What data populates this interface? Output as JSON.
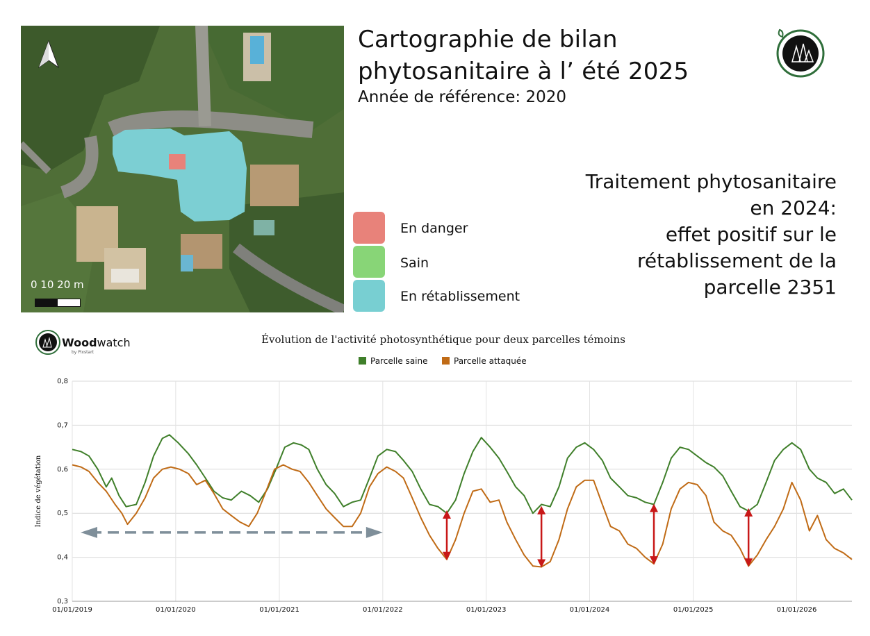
{
  "title_line1": "Cartographie de bilan",
  "title_line2": "phytosanitaire à l’ été 2025",
  "subtitle": "Année de référence: 2020",
  "map": {
    "scale_label": "0   10  20 m"
  },
  "legend": [
    {
      "label": "En danger",
      "color": "#e8827a"
    },
    {
      "label": "Sain",
      "color": "#88d577"
    },
    {
      "label": "En rétablissement",
      "color": "#78cfd2"
    }
  ],
  "note_lines": [
    "Traitement phytosanitaire",
    "en 2024:",
    "effet positif sur le",
    "rétablissement de la",
    "parcelle 2351"
  ],
  "brand": {
    "name_bold": "Wood",
    "name_rest": "watch",
    "tagline": "by Pixstart"
  },
  "colors": {
    "healthy": "#3f7f2a",
    "attacked": "#c06b16",
    "arrow_red": "#c81818",
    "arrow_grey": "#7f8f9a"
  },
  "chart_data": {
    "type": "line",
    "title": "Évolution de l'activité photosynthétique pour deux parcelles témoins",
    "ylabel": "Indice de végétation",
    "xlabel": "",
    "ylim": [
      0.3,
      0.8
    ],
    "xlim": [
      "2019-01-01",
      "2026-07-15"
    ],
    "y_ticks": [
      "0,3",
      "0,4",
      "0,5",
      "0,6",
      "0,7",
      "0,8"
    ],
    "x_ticks": [
      "01/01/2019",
      "01/01/2020",
      "01/01/2021",
      "01/01/2022",
      "01/01/2023",
      "01/01/2024",
      "01/01/2025",
      "01/01/2026"
    ],
    "grid": true,
    "legend_position": "top",
    "series": [
      {
        "name": "Parcelle saine",
        "points": [
          [
            "2019-01-01",
            0.645
          ],
          [
            "2019-02-01",
            0.64
          ],
          [
            "2019-03-01",
            0.63
          ],
          [
            "2019-04-01",
            0.6
          ],
          [
            "2019-05-01",
            0.56
          ],
          [
            "2019-05-20",
            0.58
          ],
          [
            "2019-06-15",
            0.54
          ],
          [
            "2019-07-10",
            0.515
          ],
          [
            "2019-08-15",
            0.52
          ],
          [
            "2019-09-15",
            0.57
          ],
          [
            "2019-10-15",
            0.63
          ],
          [
            "2019-11-15",
            0.67
          ],
          [
            "2019-12-10",
            0.678
          ],
          [
            "2020-01-10",
            0.66
          ],
          [
            "2020-02-15",
            0.635
          ],
          [
            "2020-03-15",
            0.61
          ],
          [
            "2020-04-15",
            0.58
          ],
          [
            "2020-05-15",
            0.55
          ],
          [
            "2020-06-15",
            0.535
          ],
          [
            "2020-07-15",
            0.53
          ],
          [
            "2020-08-20",
            0.55
          ],
          [
            "2020-09-20",
            0.54
          ],
          [
            "2020-10-20",
            0.525
          ],
          [
            "2020-11-20",
            0.555
          ],
          [
            "2020-12-20",
            0.6
          ],
          [
            "2021-01-20",
            0.65
          ],
          [
            "2021-02-20",
            0.66
          ],
          [
            "2021-03-20",
            0.655
          ],
          [
            "2021-04-15",
            0.645
          ],
          [
            "2021-05-15",
            0.6
          ],
          [
            "2021-06-15",
            0.565
          ],
          [
            "2021-07-15",
            0.545
          ],
          [
            "2021-08-15",
            0.515
          ],
          [
            "2021-09-15",
            0.525
          ],
          [
            "2021-10-15",
            0.53
          ],
          [
            "2021-11-15",
            0.58
          ],
          [
            "2021-12-15",
            0.63
          ],
          [
            "2022-01-15",
            0.645
          ],
          [
            "2022-02-15",
            0.64
          ],
          [
            "2022-03-15",
            0.62
          ],
          [
            "2022-04-15",
            0.595
          ],
          [
            "2022-05-15",
            0.555
          ],
          [
            "2022-06-15",
            0.52
          ],
          [
            "2022-07-15",
            0.515
          ],
          [
            "2022-08-15",
            0.5
          ],
          [
            "2022-09-15",
            0.53
          ],
          [
            "2022-10-15",
            0.59
          ],
          [
            "2022-11-15",
            0.64
          ],
          [
            "2022-12-15",
            0.672
          ],
          [
            "2023-01-15",
            0.65
          ],
          [
            "2023-02-15",
            0.625
          ],
          [
            "2023-03-15",
            0.595
          ],
          [
            "2023-04-15",
            0.56
          ],
          [
            "2023-05-15",
            0.54
          ],
          [
            "2023-06-15",
            0.5
          ],
          [
            "2023-07-15",
            0.52
          ],
          [
            "2023-08-15",
            0.515
          ],
          [
            "2023-09-15",
            0.56
          ],
          [
            "2023-10-15",
            0.625
          ],
          [
            "2023-11-15",
            0.65
          ],
          [
            "2023-12-15",
            0.66
          ],
          [
            "2024-01-15",
            0.645
          ],
          [
            "2024-02-15",
            0.62
          ],
          [
            "2024-03-15",
            0.58
          ],
          [
            "2024-04-15",
            0.56
          ],
          [
            "2024-05-15",
            0.54
          ],
          [
            "2024-06-15",
            0.535
          ],
          [
            "2024-07-15",
            0.525
          ],
          [
            "2024-08-15",
            0.52
          ],
          [
            "2024-09-15",
            0.57
          ],
          [
            "2024-10-15",
            0.625
          ],
          [
            "2024-11-15",
            0.65
          ],
          [
            "2024-12-15",
            0.645
          ],
          [
            "2025-01-15",
            0.63
          ],
          [
            "2025-02-15",
            0.615
          ],
          [
            "2025-03-15",
            0.605
          ],
          [
            "2025-04-15",
            0.585
          ],
          [
            "2025-05-15",
            0.55
          ],
          [
            "2025-06-15",
            0.515
          ],
          [
            "2025-07-15",
            0.505
          ],
          [
            "2025-08-15",
            0.52
          ],
          [
            "2025-09-15",
            0.57
          ],
          [
            "2025-10-15",
            0.62
          ],
          [
            "2025-11-15",
            0.645
          ],
          [
            "2025-12-15",
            0.66
          ],
          [
            "2026-01-15",
            0.645
          ],
          [
            "2026-02-15",
            0.6
          ],
          [
            "2026-03-15",
            0.58
          ],
          [
            "2026-04-15",
            0.57
          ],
          [
            "2026-05-15",
            0.545
          ],
          [
            "2026-06-15",
            0.555
          ],
          [
            "2026-07-15",
            0.53
          ]
        ]
      },
      {
        "name": "Parcelle attaquée",
        "points": [
          [
            "2019-01-01",
            0.61
          ],
          [
            "2019-02-01",
            0.605
          ],
          [
            "2019-03-01",
            0.595
          ],
          [
            "2019-04-01",
            0.57
          ],
          [
            "2019-05-01",
            0.55
          ],
          [
            "2019-06-01",
            0.52
          ],
          [
            "2019-06-25",
            0.5
          ],
          [
            "2019-07-15",
            0.475
          ],
          [
            "2019-08-15",
            0.5
          ],
          [
            "2019-09-15",
            0.535
          ],
          [
            "2019-10-15",
            0.58
          ],
          [
            "2019-11-15",
            0.6
          ],
          [
            "2019-12-15",
            0.605
          ],
          [
            "2020-01-15",
            0.6
          ],
          [
            "2020-02-15",
            0.59
          ],
          [
            "2020-03-15",
            0.565
          ],
          [
            "2020-04-15",
            0.575
          ],
          [
            "2020-05-15",
            0.545
          ],
          [
            "2020-06-15",
            0.51
          ],
          [
            "2020-07-15",
            0.495
          ],
          [
            "2020-08-15",
            0.48
          ],
          [
            "2020-09-15",
            0.47
          ],
          [
            "2020-10-15",
            0.5
          ],
          [
            "2020-11-15",
            0.55
          ],
          [
            "2020-12-15",
            0.6
          ],
          [
            "2021-01-15",
            0.61
          ],
          [
            "2021-02-15",
            0.6
          ],
          [
            "2021-03-15",
            0.595
          ],
          [
            "2021-04-15",
            0.57
          ],
          [
            "2021-05-15",
            0.54
          ],
          [
            "2021-06-15",
            0.51
          ],
          [
            "2021-07-15",
            0.49
          ],
          [
            "2021-08-15",
            0.47
          ],
          [
            "2021-09-15",
            0.47
          ],
          [
            "2021-10-15",
            0.5
          ],
          [
            "2021-11-15",
            0.56
          ],
          [
            "2021-12-15",
            0.59
          ],
          [
            "2022-01-15",
            0.605
          ],
          [
            "2022-02-15",
            0.595
          ],
          [
            "2022-03-15",
            0.58
          ],
          [
            "2022-04-15",
            0.535
          ],
          [
            "2022-05-15",
            0.49
          ],
          [
            "2022-06-15",
            0.45
          ],
          [
            "2022-07-15",
            0.42
          ],
          [
            "2022-08-15",
            0.395
          ],
          [
            "2022-09-15",
            0.44
          ],
          [
            "2022-10-15",
            0.5
          ],
          [
            "2022-11-15",
            0.55
          ],
          [
            "2022-12-15",
            0.555
          ],
          [
            "2023-01-15",
            0.525
          ],
          [
            "2023-02-15",
            0.53
          ],
          [
            "2023-03-15",
            0.48
          ],
          [
            "2023-04-15",
            0.44
          ],
          [
            "2023-05-15",
            0.405
          ],
          [
            "2023-06-15",
            0.38
          ],
          [
            "2023-07-15",
            0.378
          ],
          [
            "2023-08-15",
            0.39
          ],
          [
            "2023-09-15",
            0.44
          ],
          [
            "2023-10-15",
            0.51
          ],
          [
            "2023-11-15",
            0.56
          ],
          [
            "2023-12-15",
            0.575
          ],
          [
            "2024-01-15",
            0.575
          ],
          [
            "2024-02-15",
            0.52
          ],
          [
            "2024-03-15",
            0.47
          ],
          [
            "2024-04-15",
            0.46
          ],
          [
            "2024-05-15",
            0.43
          ],
          [
            "2024-06-15",
            0.42
          ],
          [
            "2024-07-15",
            0.4
          ],
          [
            "2024-08-15",
            0.385
          ],
          [
            "2024-09-15",
            0.43
          ],
          [
            "2024-10-15",
            0.51
          ],
          [
            "2024-11-15",
            0.555
          ],
          [
            "2024-12-15",
            0.57
          ],
          [
            "2025-01-15",
            0.565
          ],
          [
            "2025-02-15",
            0.54
          ],
          [
            "2025-03-15",
            0.48
          ],
          [
            "2025-04-15",
            0.46
          ],
          [
            "2025-05-15",
            0.45
          ],
          [
            "2025-06-15",
            0.42
          ],
          [
            "2025-07-15",
            0.38
          ],
          [
            "2025-08-15",
            0.405
          ],
          [
            "2025-09-15",
            0.44
          ],
          [
            "2025-10-15",
            0.47
          ],
          [
            "2025-11-15",
            0.51
          ],
          [
            "2025-12-15",
            0.57
          ],
          [
            "2026-01-15",
            0.53
          ],
          [
            "2026-02-15",
            0.46
          ],
          [
            "2026-03-15",
            0.495
          ],
          [
            "2026-04-15",
            0.44
          ],
          [
            "2026-05-15",
            0.42
          ],
          [
            "2026-06-15",
            0.41
          ],
          [
            "2026-07-15",
            0.395
          ]
        ]
      }
    ],
    "annotations": {
      "red_arrows": [
        {
          "date": "2022-08-15",
          "from": 0.395,
          "to": 0.505
        },
        {
          "date": "2023-07-15",
          "from": 0.378,
          "to": 0.515
        },
        {
          "date": "2024-08-15",
          "from": 0.385,
          "to": 0.52
        },
        {
          "date": "2025-07-15",
          "from": 0.38,
          "to": 0.51
        }
      ],
      "grey_dashed_arrow": {
        "from": "2019-01-01",
        "to": "2022-01-01",
        "y": 0.45
      }
    }
  }
}
